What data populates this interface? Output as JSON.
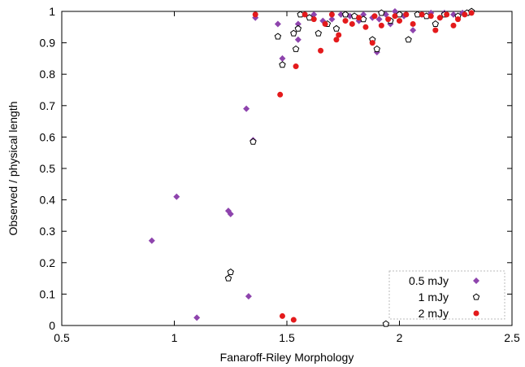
{
  "chart_data": {
    "type": "scatter",
    "title": "",
    "xlabel": "Fanaroff-Riley Morphology",
    "ylabel": "Observed / physical length",
    "xlim": [
      0.5,
      2.5
    ],
    "ylim": [
      0,
      1
    ],
    "x_ticks": [
      "0.5",
      "1",
      "1.5",
      "2",
      "2.5"
    ],
    "y_ticks": [
      "0",
      "0.1",
      "0.2",
      "0.3",
      "0.4",
      "0.5",
      "0.6",
      "0.7",
      "0.8",
      "0.9",
      "1"
    ],
    "grid": false,
    "legend_position": "bottom-right",
    "series": [
      {
        "name": "0.5 mJy",
        "marker": "diamond",
        "color": "#8e44ad",
        "points": [
          [
            0.9,
            0.27
          ],
          [
            1.01,
            0.41
          ],
          [
            1.1,
            0.025
          ],
          [
            1.24,
            0.365
          ],
          [
            1.25,
            0.355
          ],
          [
            1.32,
            0.69
          ],
          [
            1.33,
            0.093
          ],
          [
            1.35,
            0.59
          ],
          [
            1.36,
            0.98
          ],
          [
            1.46,
            0.96
          ],
          [
            1.48,
            0.85
          ],
          [
            1.55,
            0.91
          ],
          [
            1.55,
            0.96
          ],
          [
            1.62,
            0.99
          ],
          [
            1.66,
            0.97
          ],
          [
            1.7,
            0.975
          ],
          [
            1.74,
            0.99
          ],
          [
            1.78,
            0.985
          ],
          [
            1.82,
            0.97
          ],
          [
            1.84,
            0.99
          ],
          [
            1.88,
            0.98
          ],
          [
            1.9,
            0.87
          ],
          [
            1.91,
            0.975
          ],
          [
            1.94,
            0.99
          ],
          [
            1.96,
            0.96
          ],
          [
            1.98,
            1.0
          ],
          [
            2.02,
            0.985
          ],
          [
            2.06,
            0.94
          ],
          [
            2.1,
            0.99
          ],
          [
            2.14,
            0.995
          ],
          [
            2.18,
            0.98
          ],
          [
            2.2,
            0.995
          ],
          [
            2.24,
            0.99
          ],
          [
            2.28,
            0.995
          ],
          [
            2.32,
            1.0
          ]
        ]
      },
      {
        "name": "1 mJy",
        "marker": "pentagon",
        "color": "#000000",
        "points": [
          [
            1.24,
            0.15
          ],
          [
            1.25,
            0.17
          ],
          [
            1.35,
            0.585
          ],
          [
            1.46,
            0.92
          ],
          [
            1.48,
            0.83
          ],
          [
            1.53,
            0.93
          ],
          [
            1.54,
            0.88
          ],
          [
            1.55,
            0.945
          ],
          [
            1.56,
            0.99
          ],
          [
            1.6,
            0.98
          ],
          [
            1.64,
            0.93
          ],
          [
            1.68,
            0.96
          ],
          [
            1.72,
            0.945
          ],
          [
            1.76,
            0.99
          ],
          [
            1.8,
            0.985
          ],
          [
            1.84,
            0.975
          ],
          [
            1.88,
            0.91
          ],
          [
            1.9,
            0.88
          ],
          [
            1.92,
            0.995
          ],
          [
            1.94,
            0.005
          ],
          [
            1.96,
            0.97
          ],
          [
            2.0,
            0.99
          ],
          [
            2.04,
            0.91
          ],
          [
            2.08,
            0.99
          ],
          [
            2.12,
            0.985
          ],
          [
            2.16,
            0.96
          ],
          [
            2.2,
            0.99
          ],
          [
            2.26,
            0.985
          ],
          [
            2.3,
            0.995
          ],
          [
            2.32,
            1.0
          ]
        ]
      },
      {
        "name": "2 mJy",
        "marker": "circle",
        "color": "#e41a1c",
        "points": [
          [
            1.36,
            0.99
          ],
          [
            1.47,
            0.735
          ],
          [
            1.48,
            0.03
          ],
          [
            1.53,
            0.018
          ],
          [
            1.54,
            0.825
          ],
          [
            1.58,
            0.99
          ],
          [
            1.62,
            0.975
          ],
          [
            1.65,
            0.875
          ],
          [
            1.67,
            0.96
          ],
          [
            1.7,
            0.99
          ],
          [
            1.72,
            0.91
          ],
          [
            1.73,
            0.925
          ],
          [
            1.76,
            0.97
          ],
          [
            1.79,
            0.96
          ],
          [
            1.82,
            0.98
          ],
          [
            1.85,
            0.95
          ],
          [
            1.88,
            0.9
          ],
          [
            1.89,
            0.985
          ],
          [
            1.92,
            0.955
          ],
          [
            1.95,
            0.975
          ],
          [
            1.98,
            0.985
          ],
          [
            2.0,
            0.97
          ],
          [
            2.03,
            0.99
          ],
          [
            2.06,
            0.96
          ],
          [
            2.1,
            0.99
          ],
          [
            2.14,
            0.985
          ],
          [
            2.16,
            0.94
          ],
          [
            2.18,
            0.98
          ],
          [
            2.21,
            0.99
          ],
          [
            2.24,
            0.955
          ],
          [
            2.26,
            0.975
          ],
          [
            2.29,
            0.99
          ],
          [
            2.32,
            0.995
          ]
        ]
      }
    ]
  }
}
